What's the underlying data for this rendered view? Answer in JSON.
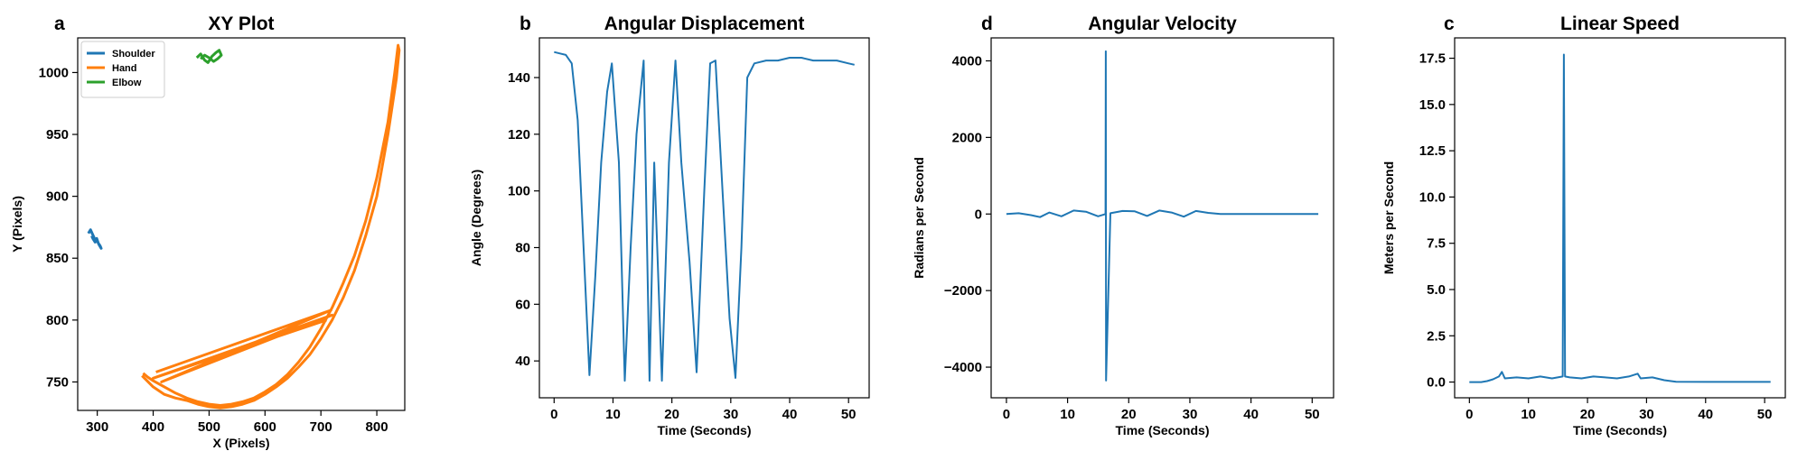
{
  "chart_data": [
    {
      "letter": "a",
      "type": "line",
      "title": "XY Plot",
      "xlabel": "X (Pixels)",
      "ylabel": "Y (Pixels)",
      "xlim": [
        265,
        850
      ],
      "ylim": [
        727,
        1028
      ],
      "xticks": [
        300,
        400,
        500,
        600,
        700,
        800
      ],
      "yticks": [
        750,
        800,
        850,
        900,
        950,
        1000
      ],
      "legend": "top-left",
      "series": [
        {
          "name": "Shoulder",
          "color": "#1f77b4",
          "x": [
            284,
            288,
            292,
            296,
            299,
            302,
            305,
            307,
            303,
            300,
            296,
            292,
            290
          ],
          "y": [
            870,
            873,
            869,
            865,
            866,
            862,
            860,
            858,
            861,
            864,
            863,
            866,
            868
          ]
        },
        {
          "name": "Hand",
          "color": "#ff7f0e",
          "x": [
            380,
            400,
            420,
            440,
            460,
            480,
            500,
            520,
            540,
            560,
            580,
            600,
            620,
            640,
            660,
            680,
            700,
            720,
            740,
            760,
            780,
            800,
            820,
            835,
            840,
            838,
            832,
            820,
            800,
            780,
            760,
            740,
            720,
            700,
            680,
            660,
            640,
            620,
            600,
            580,
            560,
            540,
            520,
            500,
            480,
            460,
            440,
            420,
            400,
            390,
            382
          ],
          "y": [
            755,
            746,
            740,
            737,
            735,
            732,
            730,
            729,
            730,
            732,
            735,
            740,
            746,
            753,
            762,
            772,
            785,
            800,
            818,
            840,
            868,
            900,
            950,
            995,
            1018,
            1022,
            1000,
            960,
            915,
            880,
            852,
            830,
            810,
            793,
            778,
            766,
            756,
            748,
            742,
            737,
            734,
            732,
            731,
            732,
            734,
            737,
            741,
            746,
            751,
            754,
            757
          ]
        },
        {
          "name": "Elbow",
          "color": "#2ca02c",
          "x": [
            478,
            485,
            492,
            498,
            505,
            512,
            518,
            522,
            515,
            508,
            500,
            492,
            485
          ],
          "y": [
            1012,
            1015,
            1010,
            1008,
            1013,
            1016,
            1018,
            1014,
            1011,
            1009,
            1012,
            1014,
            1011
          ]
        },
        {
          "name": "",
          "color": "#ff7f0e",
          "x": [
            405,
            718,
            415,
            720,
            400,
            710
          ],
          "y": [
            758,
            808,
            750,
            804,
            753,
            800
          ]
        }
      ]
    },
    {
      "letter": "b",
      "type": "line",
      "title": "Angular Displacement",
      "xlabel": "Time (Seconds)",
      "ylabel": "Angle (Degrees)",
      "xlim": [
        -2.5,
        53.5
      ],
      "ylim": [
        27,
        154
      ],
      "xticks": [
        0,
        10,
        20,
        30,
        40,
        50
      ],
      "yticks": [
        40,
        60,
        80,
        100,
        120,
        140
      ],
      "series": [
        {
          "name": "",
          "color": "#1f77b4",
          "x": [
            0,
            1,
            2,
            3,
            4,
            5,
            6,
            7,
            8,
            9,
            9.8,
            11,
            12,
            13,
            14,
            15.2,
            16.2,
            17,
            18.3,
            19.5,
            20.6,
            21.6,
            23,
            24.2,
            25.5,
            26.5,
            27.4,
            28.6,
            29.8,
            30.8,
            31.8,
            32.8,
            34,
            36,
            38,
            40,
            42,
            44,
            46,
            48,
            50,
            51
          ],
          "y": [
            149,
            148.5,
            148,
            145,
            125,
            80,
            35,
            70,
            110,
            135,
            145,
            110,
            33,
            80,
            120,
            146,
            33,
            110,
            33,
            110,
            146,
            110,
            75,
            36,
            100,
            145,
            146,
            100,
            55,
            34,
            80,
            140,
            145,
            146,
            146,
            147,
            147,
            146,
            146,
            146,
            145,
            144.5
          ]
        }
      ]
    },
    {
      "letter": "d",
      "type": "line",
      "title": "Angular Velocity",
      "xlabel": "Time (Seconds)",
      "ylabel": "Radians per Second",
      "xlim": [
        -2.5,
        53.5
      ],
      "ylim": [
        -4800,
        4600
      ],
      "xticks": [
        0,
        10,
        20,
        30,
        40,
        50
      ],
      "yticks": [
        -4000,
        -2000,
        0,
        2000,
        4000
      ],
      "series": [
        {
          "name": "",
          "color": "#1f77b4",
          "x": [
            0,
            2,
            4,
            5.5,
            7,
            9,
            11,
            13,
            15,
            16.2,
            16.25,
            16.3,
            17,
            19,
            21,
            23,
            25,
            27,
            29,
            31,
            33,
            35,
            38,
            41,
            44,
            47,
            50,
            51
          ],
          "y": [
            0,
            20,
            -30,
            -80,
            40,
            -60,
            90,
            60,
            -60,
            0,
            4250,
            -4350,
            20,
            80,
            70,
            -50,
            90,
            40,
            -70,
            80,
            30,
            0,
            0,
            0,
            0,
            0,
            0,
            0
          ]
        }
      ]
    },
    {
      "letter": "c",
      "type": "line",
      "title": "Linear Speed",
      "xlabel": "Time (Seconds)",
      "ylabel": "Meters per Second",
      "xlim": [
        -2.5,
        53.5
      ],
      "ylim": [
        -0.85,
        18.6
      ],
      "xticks": [
        0,
        10,
        20,
        30,
        40,
        50
      ],
      "yticks": [
        0.0,
        2.5,
        5.0,
        7.5,
        10.0,
        12.5,
        15.0,
        17.5
      ],
      "series": [
        {
          "name": "",
          "color": "#1f77b4",
          "x": [
            0,
            2,
            3,
            4,
            5,
            5.5,
            6,
            8,
            10,
            12,
            14,
            15.8,
            16,
            16.2,
            17,
            19,
            21,
            23,
            25,
            27,
            28.5,
            29,
            31,
            33,
            35,
            40,
            45,
            50,
            51
          ],
          "y": [
            0,
            0,
            0.05,
            0.15,
            0.3,
            0.55,
            0.2,
            0.25,
            0.2,
            0.3,
            0.2,
            0.3,
            17.7,
            0.3,
            0.25,
            0.2,
            0.3,
            0.25,
            0.2,
            0.3,
            0.45,
            0.2,
            0.25,
            0.1,
            0.02,
            0.01,
            0.01,
            0.01,
            0.01
          ]
        }
      ]
    }
  ]
}
